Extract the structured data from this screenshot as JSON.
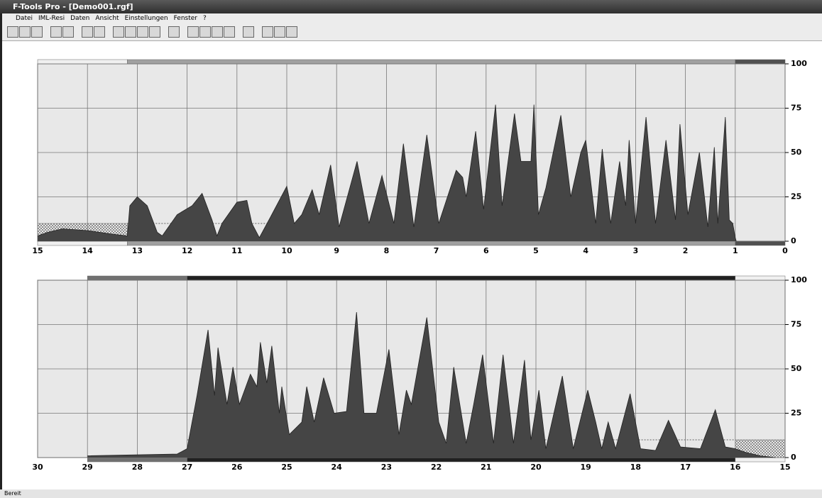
{
  "window": {
    "title": "F-Tools Pro - [Demo001.rgf]"
  },
  "menu": [
    "Datei",
    "IML-Resi",
    "Daten",
    "Ansicht",
    "Einstellungen",
    "Fenster",
    "?"
  ],
  "status": "Bereit",
  "chart_data": [
    {
      "type": "area",
      "color": "#454545",
      "grid": true,
      "threshold": 10,
      "xlim": [
        15,
        0
      ],
      "xticks": [
        15,
        14,
        13,
        12,
        11,
        10,
        9,
        8,
        7,
        6,
        5,
        4,
        3,
        2,
        1,
        0
      ],
      "ylim": [
        0,
        100
      ],
      "yticks": [
        0,
        25,
        50,
        75,
        100
      ],
      "segments": [
        {
          "from": 15,
          "to": 13.2,
          "color": "#f0f0f0",
          "hatch": true
        },
        {
          "from": 13.2,
          "to": 1,
          "color": "#a0a0a0",
          "hatch": false
        },
        {
          "from": 1,
          "to": 0,
          "color": "#505050",
          "hatch": false
        }
      ],
      "x": [
        15,
        14.8,
        14.5,
        14,
        13.5,
        13.2,
        13.15,
        13,
        12.8,
        12.6,
        12.5,
        12.2,
        11.9,
        11.7,
        11.5,
        11.4,
        11.3,
        11,
        10.8,
        10.7,
        10.55,
        10.3,
        10,
        9.85,
        9.7,
        9.49,
        9.35,
        9.12,
        8.95,
        8.59,
        8.35,
        8.09,
        7.85,
        7.66,
        7.45,
        7.19,
        6.95,
        6.6,
        6.47,
        6.4,
        6.21,
        6.05,
        5.81,
        5.68,
        5.43,
        5.3,
        5.1,
        5.04,
        4.95,
        4.8,
        4.5,
        4.3,
        4.1,
        4.0,
        3.8,
        3.67,
        3.5,
        3.32,
        3.2,
        3.13,
        3.0,
        2.79,
        2.6,
        2.39,
        2.2,
        2.11,
        1.95,
        1.72,
        1.55,
        1.42,
        1.35,
        1.2,
        1.12,
        1.05,
        1.0,
        0.98
      ],
      "values": [
        3,
        5,
        7,
        6,
        4,
        3,
        20,
        25,
        20,
        5,
        3,
        15,
        20,
        27,
        12,
        3,
        10,
        22,
        23,
        10,
        2,
        15,
        31,
        10,
        15,
        29,
        15,
        43,
        8,
        45,
        10,
        37,
        10,
        55,
        8,
        60,
        10,
        40,
        36,
        25,
        62,
        18,
        77,
        20,
        72,
        45,
        45,
        77,
        15,
        30,
        71,
        25,
        50,
        57,
        10,
        52,
        10,
        45,
        20,
        57,
        10,
        70,
        10,
        57,
        12,
        66,
        15,
        50,
        8,
        53,
        10,
        70,
        12,
        10,
        2,
        0
      ]
    },
    {
      "type": "area",
      "color": "#454545",
      "grid": true,
      "threshold": 10,
      "xlim": [
        30,
        15
      ],
      "xticks": [
        30,
        29,
        28,
        27,
        26,
        25,
        24,
        23,
        22,
        21,
        20,
        19,
        18,
        17,
        16,
        15
      ],
      "ylim": [
        0,
        100
      ],
      "yticks": [
        0,
        25,
        50,
        75,
        100
      ],
      "segments": [
        {
          "from": 29,
          "to": 27,
          "color": "#707070",
          "hatch": false
        },
        {
          "from": 27,
          "to": 16,
          "color": "#202020",
          "hatch": false
        },
        {
          "from": 16,
          "to": 15,
          "color": "#f0f0f0",
          "hatch": true
        }
      ],
      "x": [
        29,
        27.2,
        27,
        26.8,
        26.58,
        26.45,
        26.38,
        26.2,
        26.08,
        25.95,
        25.73,
        25.6,
        25.53,
        25.4,
        25.3,
        25.15,
        25.1,
        24.95,
        24.7,
        24.6,
        24.45,
        24.26,
        24.05,
        23.8,
        23.6,
        23.45,
        23.2,
        22.95,
        22.75,
        22.6,
        22.5,
        22.19,
        21.95,
        21.8,
        21.65,
        21.4,
        21.25,
        21.07,
        20.85,
        20.66,
        20.45,
        20.23,
        20.1,
        19.94,
        19.8,
        19.47,
        19.25,
        18.96,
        18.8,
        18.68,
        18.55,
        18.4,
        18.11,
        17.9,
        17.6,
        17.34,
        17.1,
        16.7,
        16.4,
        16.2,
        16,
        15.8,
        15.5,
        15.2
      ],
      "values": [
        1,
        2,
        5,
        35,
        72,
        35,
        62,
        30,
        51,
        30,
        47,
        40,
        65,
        42,
        63,
        25,
        40,
        13,
        20,
        40,
        20,
        45,
        25,
        26,
        82,
        25,
        25,
        61,
        13,
        38,
        30,
        79,
        20,
        8,
        51,
        8,
        30,
        58,
        8,
        58,
        8,
        55,
        10,
        38,
        5,
        46,
        5,
        38,
        20,
        5,
        20,
        5,
        36,
        5,
        4,
        21,
        6,
        5,
        27,
        6,
        5,
        3,
        1,
        0
      ]
    }
  ]
}
